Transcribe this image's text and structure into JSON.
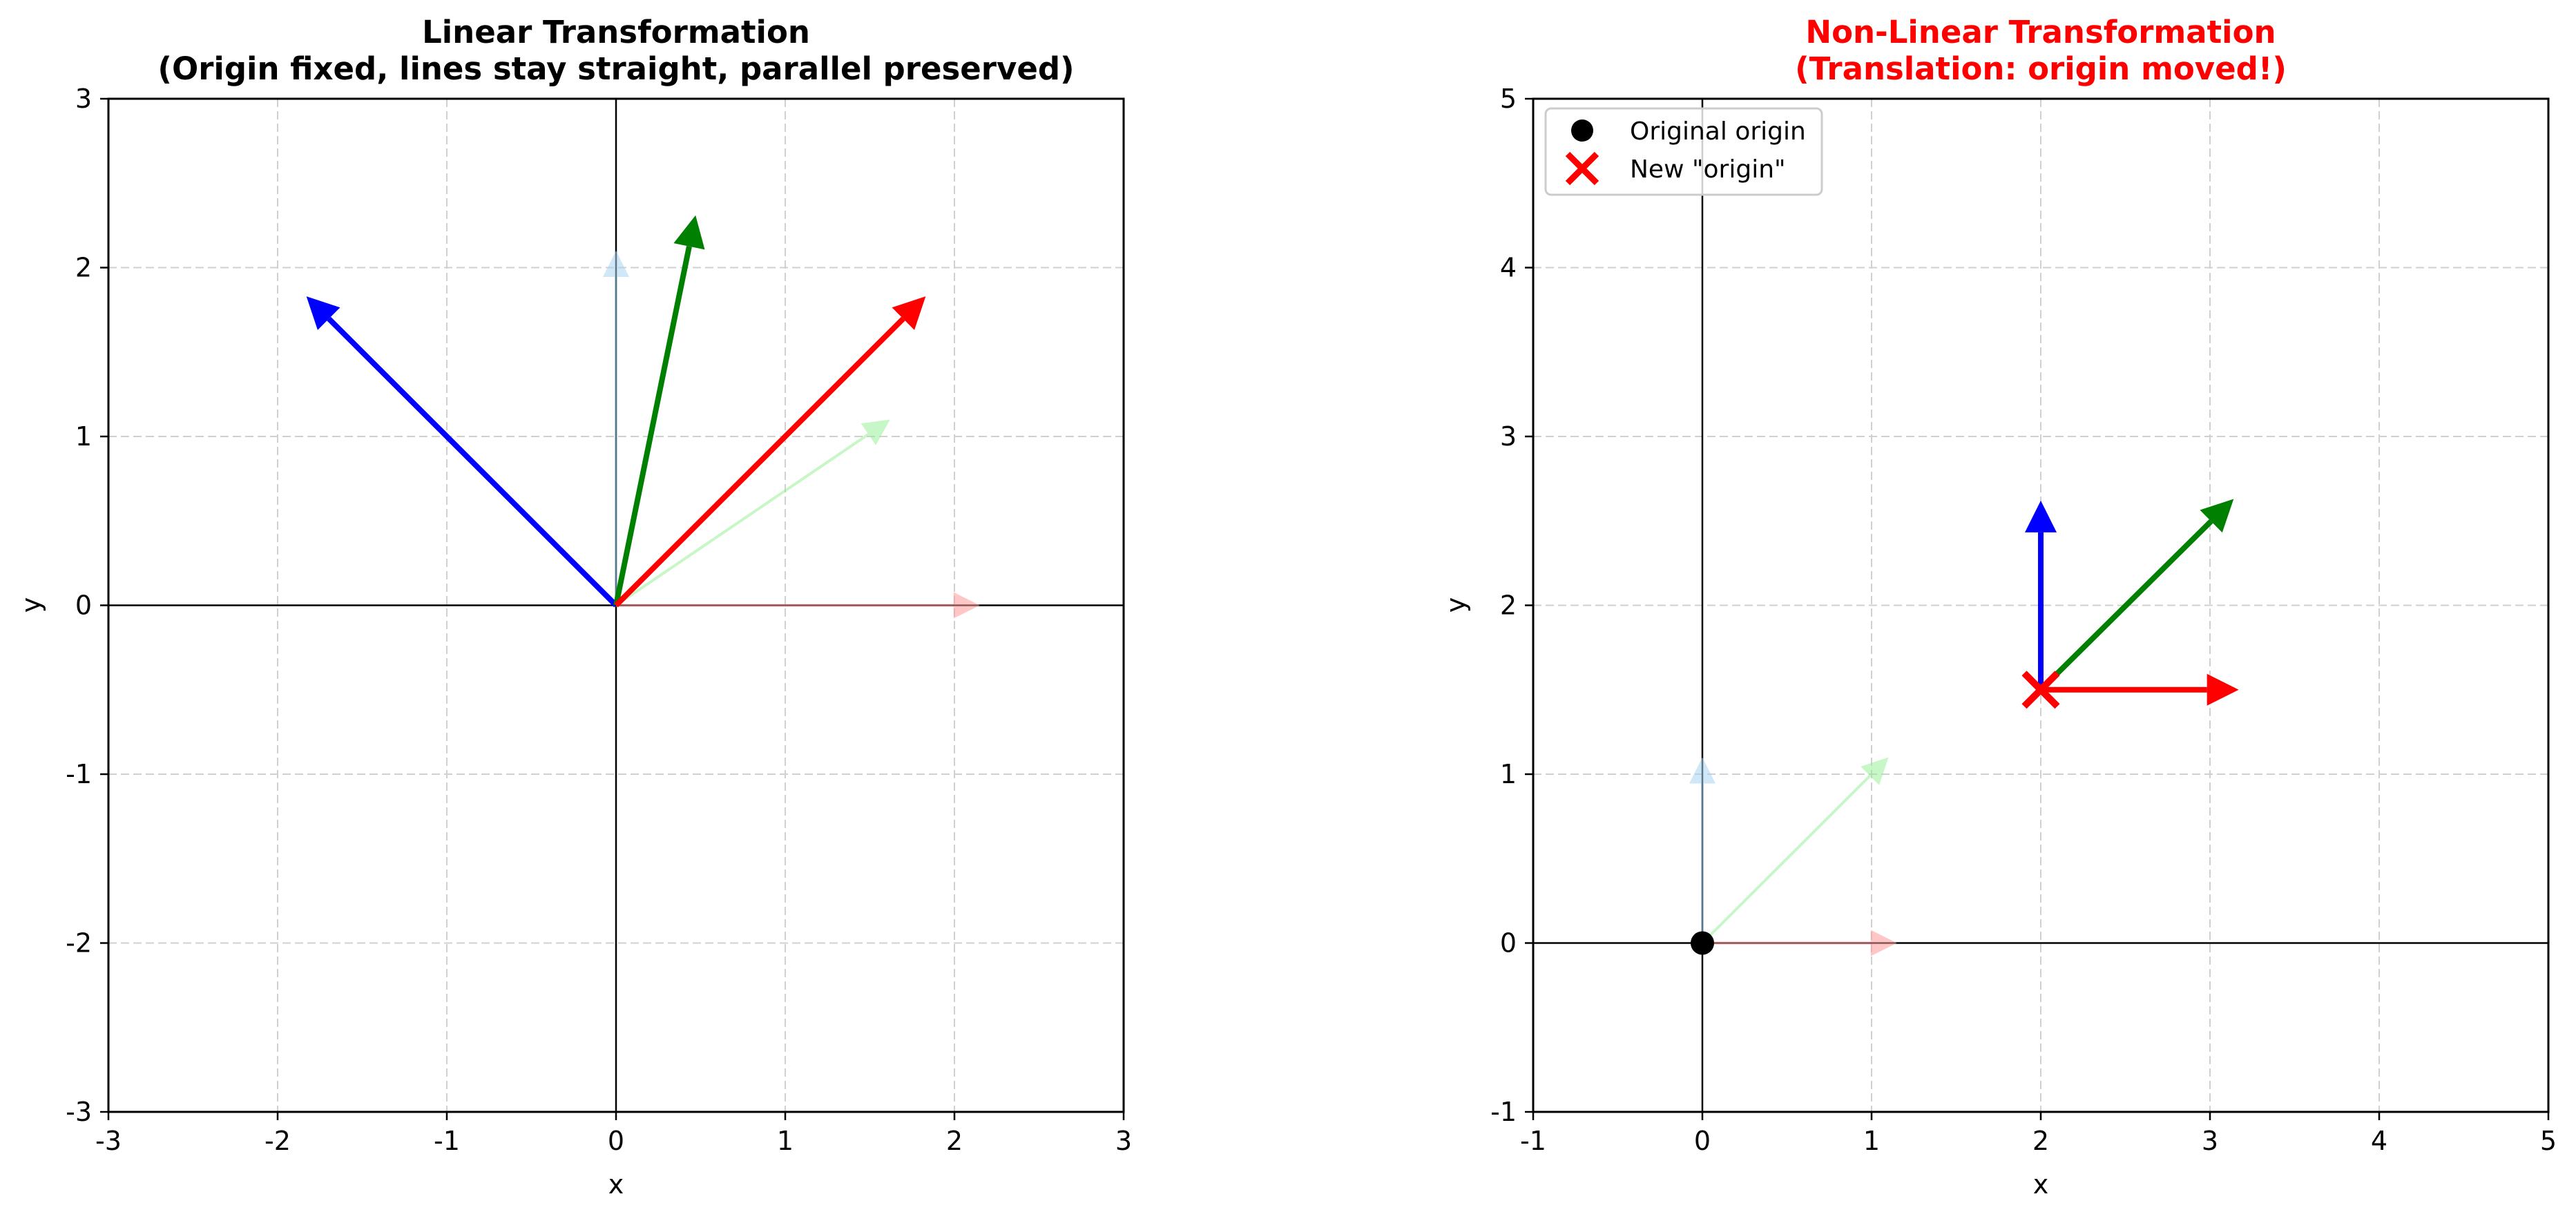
{
  "chart_data": [
    {
      "type": "line",
      "subtype": "vector-field",
      "title_line1": "Linear Transformation",
      "title_line2": "(Origin fixed, lines stay straight, parallel preserved)",
      "title_color": "#000000",
      "xlabel": "x",
      "ylabel": "y",
      "xlim": [
        -3,
        3
      ],
      "ylim": [
        -3,
        3
      ],
      "xticks": [
        -3,
        -2,
        -1,
        0,
        1,
        2,
        3
      ],
      "yticks": [
        -3,
        -2,
        -1,
        0,
        1,
        2,
        3
      ],
      "grid": true,
      "vectors": [
        {
          "from": [
            0,
            0
          ],
          "to": [
            2.15,
            0
          ],
          "color": "#ff9999",
          "opacity": 0.55,
          "role": "original"
        },
        {
          "from": [
            0,
            0
          ],
          "to": [
            0,
            2.1
          ],
          "color": "#a8d4f0",
          "opacity": 0.55,
          "role": "original"
        },
        {
          "from": [
            0,
            0
          ],
          "to": [
            1.62,
            1.1
          ],
          "color": "#90ee90",
          "opacity": 0.5,
          "role": "original"
        },
        {
          "from": [
            0,
            0
          ],
          "to": [
            -1.83,
            1.83
          ],
          "color": "#0000ff",
          "opacity": 1,
          "role": "transformed"
        },
        {
          "from": [
            0,
            0
          ],
          "to": [
            0.47,
            2.31
          ],
          "color": "#008000",
          "opacity": 1,
          "role": "transformed"
        },
        {
          "from": [
            0,
            0
          ],
          "to": [
            1.83,
            1.83
          ],
          "color": "#ff0000",
          "opacity": 1,
          "role": "transformed"
        }
      ],
      "markers": []
    },
    {
      "type": "line",
      "subtype": "vector-field",
      "title_line1": "Non-Linear Transformation",
      "title_line2": "(Translation: origin moved!)",
      "title_color": "#ff0000",
      "xlabel": "x",
      "ylabel": "y",
      "xlim": [
        -1,
        5
      ],
      "ylim": [
        -1,
        5
      ],
      "xticks": [
        -1,
        0,
        1,
        2,
        3,
        4,
        5
      ],
      "yticks": [
        -1,
        0,
        1,
        2,
        3,
        4,
        5
      ],
      "grid": true,
      "legend_position": "upper-left",
      "legend": [
        {
          "label": "Original origin",
          "marker": "circle",
          "color": "#000000"
        },
        {
          "label": "New \"origin\"",
          "marker": "x",
          "color": "#ff0000"
        }
      ],
      "vectors": [
        {
          "from": [
            0,
            0
          ],
          "to": [
            1.15,
            0
          ],
          "color": "#ff9999",
          "opacity": 0.55,
          "role": "original"
        },
        {
          "from": [
            0,
            0
          ],
          "to": [
            0,
            1.1
          ],
          "color": "#a8d4f0",
          "opacity": 0.55,
          "role": "original"
        },
        {
          "from": [
            0,
            0
          ],
          "to": [
            1.1,
            1.1
          ],
          "color": "#90ee90",
          "opacity": 0.5,
          "role": "original"
        },
        {
          "from": [
            2,
            1.5
          ],
          "to": [
            2,
            2.62
          ],
          "color": "#0000ff",
          "opacity": 1,
          "role": "transformed"
        },
        {
          "from": [
            2,
            1.5
          ],
          "to": [
            3.14,
            2.63
          ],
          "color": "#008000",
          "opacity": 1,
          "role": "transformed"
        },
        {
          "from": [
            2,
            1.5
          ],
          "to": [
            3.17,
            1.5
          ],
          "color": "#ff0000",
          "opacity": 1,
          "role": "transformed"
        }
      ],
      "markers": [
        {
          "at": [
            0,
            0
          ],
          "shape": "circle",
          "color": "#000000"
        },
        {
          "at": [
            2,
            1.5
          ],
          "shape": "x",
          "color": "#ff0000"
        }
      ]
    }
  ]
}
